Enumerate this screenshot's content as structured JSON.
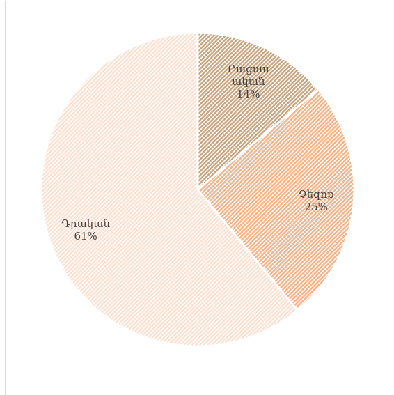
{
  "chart_data": {
    "type": "pie",
    "categories": [
      "Բացասական",
      "Չեզոք",
      "Դրական"
    ],
    "values": [
      14,
      25,
      61
    ],
    "value_labels": [
      "14%",
      "25%",
      "61%"
    ],
    "colors": [
      "#c8a27c",
      "#f4b183",
      "#fbe0cf"
    ]
  }
}
